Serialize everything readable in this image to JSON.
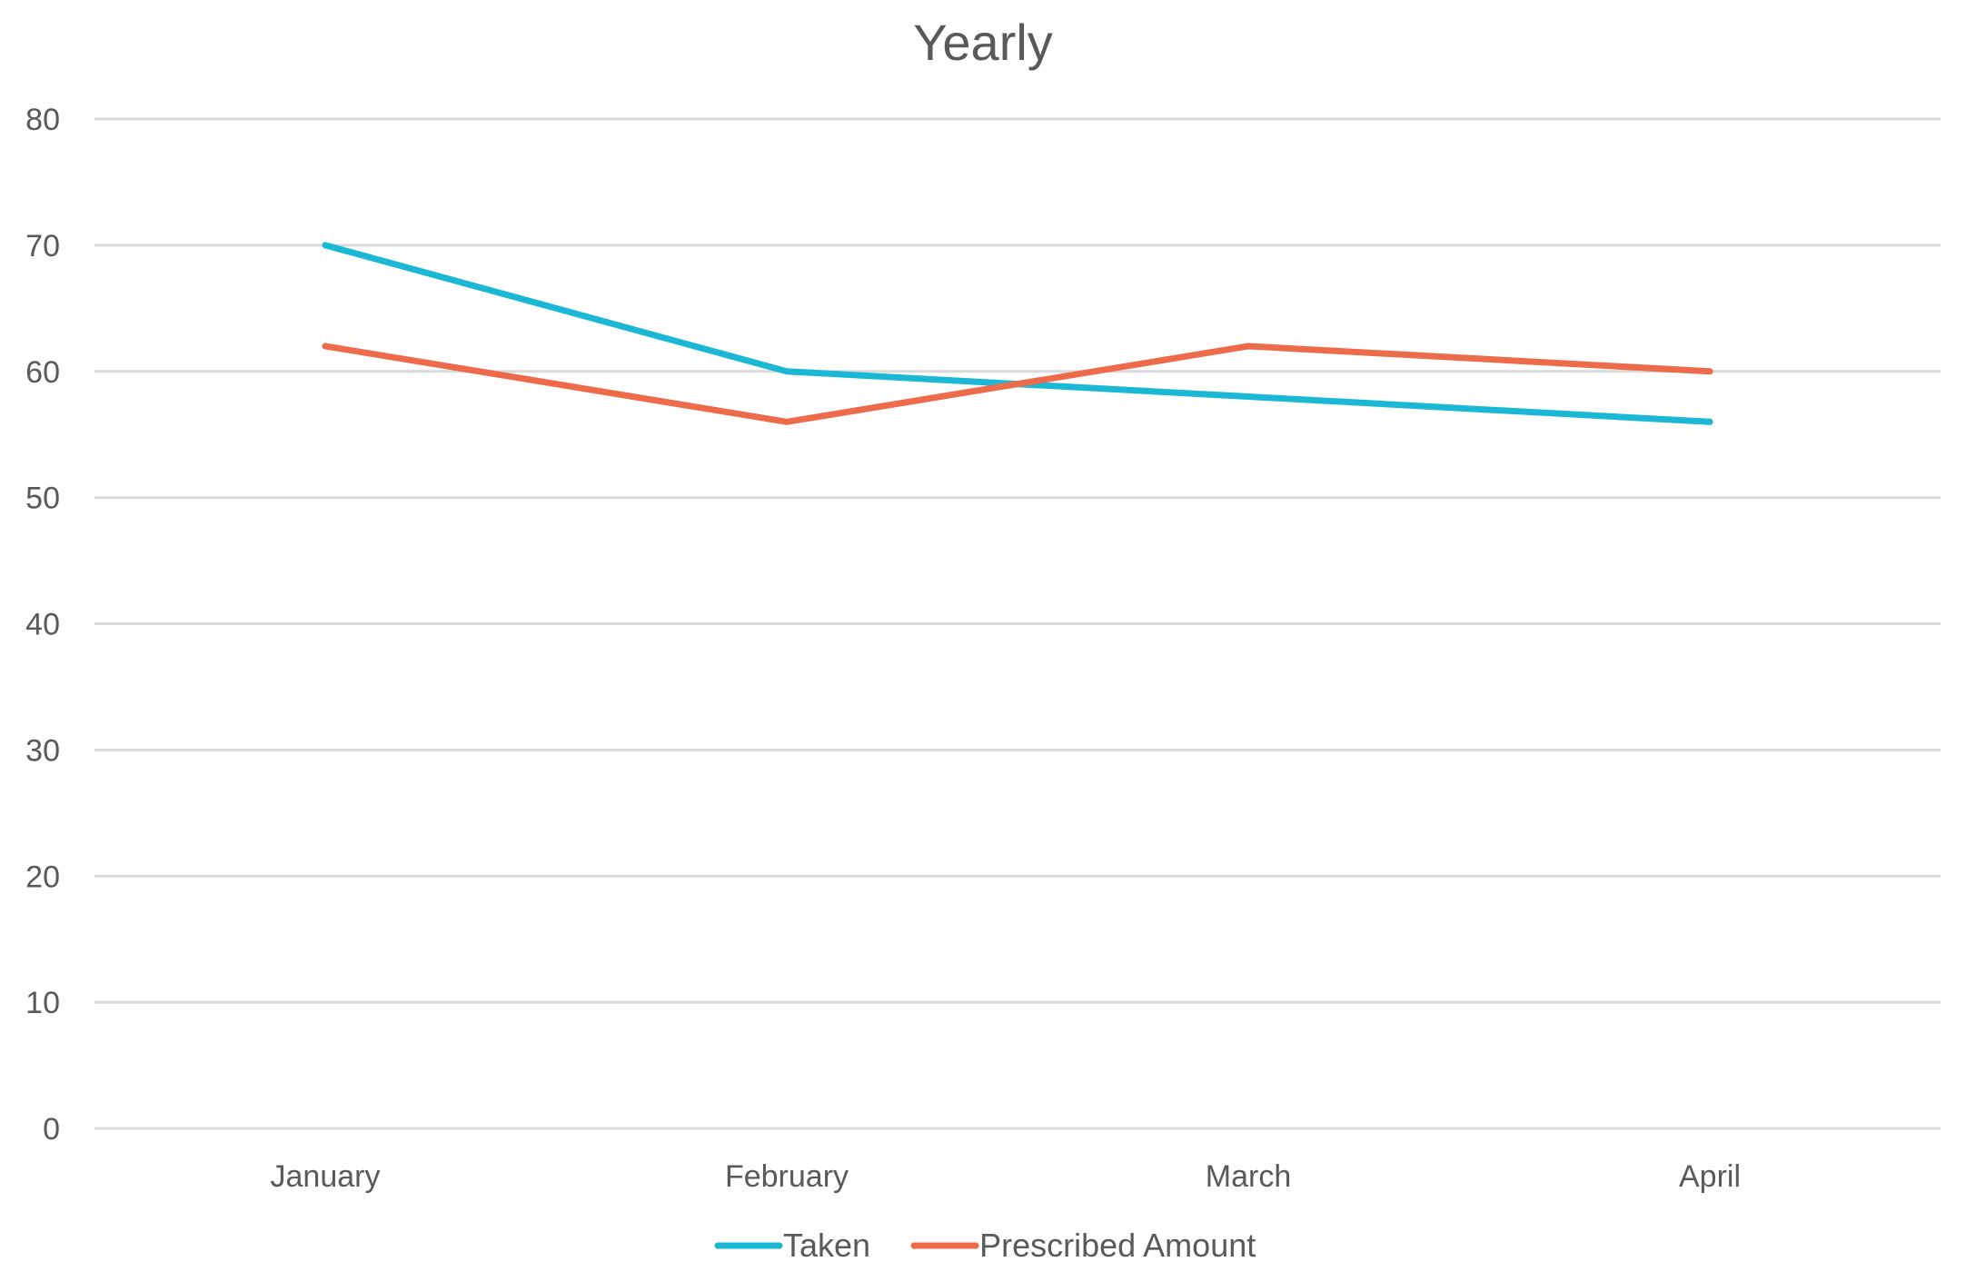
{
  "chart_data": {
    "type": "line",
    "title": "Yearly",
    "xlabel": "",
    "ylabel": "",
    "categories": [
      "January",
      "February",
      "March",
      "April"
    ],
    "ylim": [
      0,
      80
    ],
    "yticks": [
      0,
      10,
      20,
      30,
      40,
      50,
      60,
      70,
      80
    ],
    "grid": true,
    "legend_position": "bottom",
    "series": [
      {
        "name": "Taken",
        "values": [
          70,
          60,
          58,
          56
        ],
        "color": "#1ab8d4"
      },
      {
        "name": "Prescribed Amount",
        "values": [
          62,
          56,
          62,
          60
        ],
        "color": "#ed6b4a"
      }
    ]
  }
}
